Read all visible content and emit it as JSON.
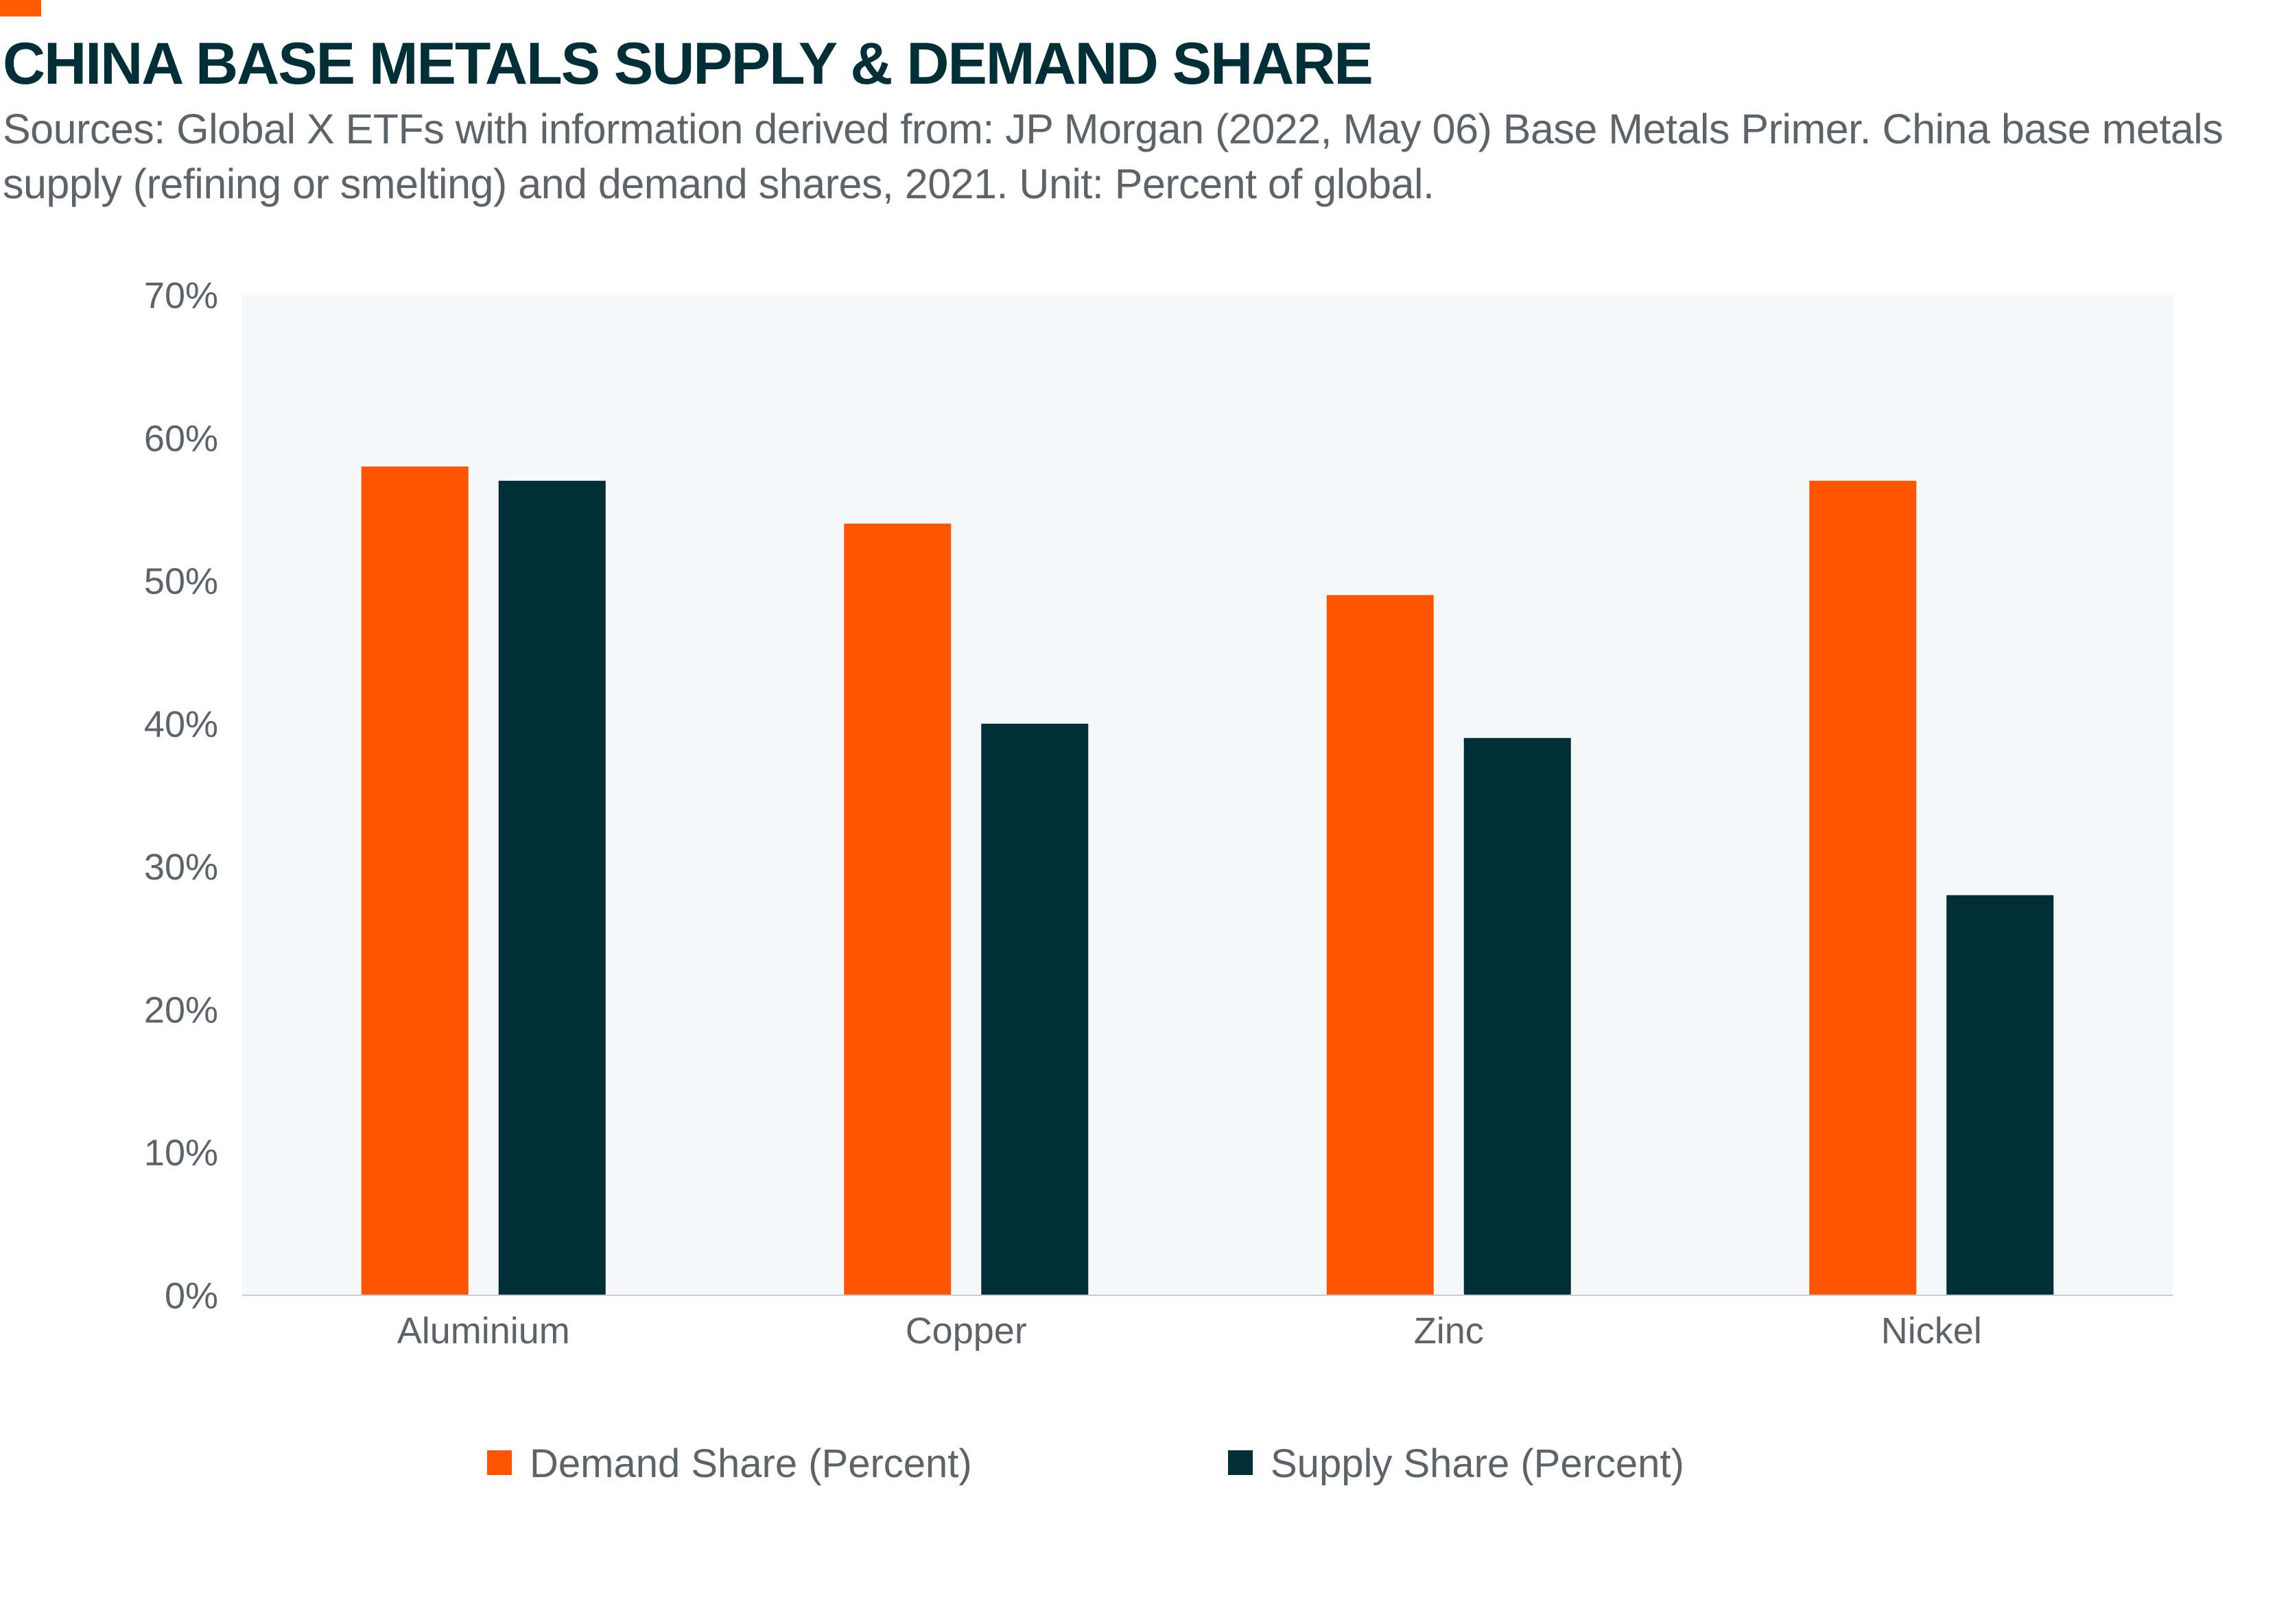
{
  "colors": {
    "accent": "#ff5a00",
    "demand": "#ff5500",
    "supply": "#012f38",
    "plot_background": "#f6f7f9",
    "title": "#012f38",
    "text": "#5d6366"
  },
  "chart_data": {
    "type": "bar",
    "title": "CHINA BASE METALS SUPPLY & DEMAND SHARE",
    "subtitle": "Sources: Global X ETFs with information derived from: JP Morgan (2022, May 06) Base Metals Primer. China base metals supply (refining or smelting) and demand shares, 2021. Unit: Percent of global.",
    "categories": [
      "Aluminium",
      "Copper",
      "Zinc",
      "Nickel"
    ],
    "series": [
      {
        "name": "Demand Share (Percent)",
        "values": [
          58,
          54,
          49,
          57
        ]
      },
      {
        "name": "Supply Share (Percent)",
        "values": [
          57,
          40,
          39,
          28
        ]
      }
    ],
    "xlabel": "",
    "ylabel": "",
    "ylim": [
      0,
      70
    ],
    "yticks": [
      0,
      10,
      20,
      30,
      40,
      50,
      60,
      70
    ],
    "ytick_labels": [
      "0%",
      "10%",
      "20%",
      "30%",
      "40%",
      "50%",
      "60%",
      "70%"
    ],
    "legend_position": "bottom",
    "grid": false
  }
}
